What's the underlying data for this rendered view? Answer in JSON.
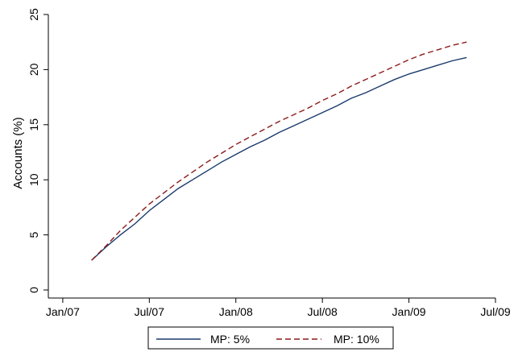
{
  "chart_data": {
    "type": "line",
    "title": "",
    "xlabel": "",
    "ylabel": "Accounts (%)",
    "xlim": [
      "2006-12",
      "2009-07"
    ],
    "ylim": [
      0,
      25
    ],
    "x_ticks": [
      "Jan/07",
      "Jul/07",
      "Jan/08",
      "Jul/08",
      "Jan/09",
      "Jul/09"
    ],
    "y_ticks": [
      0,
      5,
      10,
      15,
      20,
      25
    ],
    "grid": false,
    "legend_position": "bottom",
    "x": [
      "2007-03",
      "2007-04",
      "2007-05",
      "2007-06",
      "2007-07",
      "2007-08",
      "2007-09",
      "2007-10",
      "2007-11",
      "2007-12",
      "2008-01",
      "2008-02",
      "2008-03",
      "2008-04",
      "2008-05",
      "2008-06",
      "2008-07",
      "2008-08",
      "2008-09",
      "2008-10",
      "2008-11",
      "2008-12",
      "2009-01",
      "2009-02",
      "2009-03",
      "2009-04",
      "2009-05"
    ],
    "series": [
      {
        "name": "MP: 5%",
        "color": "#1a3a6b",
        "dash": "solid",
        "values": [
          2.7,
          3.9,
          5.0,
          6.0,
          7.2,
          8.2,
          9.2,
          10.0,
          10.8,
          11.6,
          12.3,
          13.0,
          13.6,
          14.3,
          14.9,
          15.5,
          16.1,
          16.7,
          17.4,
          17.9,
          18.5,
          19.1,
          19.6,
          20.0,
          20.4,
          20.8,
          21.1
        ]
      },
      {
        "name": "MP: 10%",
        "color": "#8b1a1a",
        "dash": "dashed",
        "values": [
          2.7,
          4.0,
          5.4,
          6.6,
          7.8,
          8.8,
          9.8,
          10.7,
          11.6,
          12.4,
          13.2,
          13.9,
          14.6,
          15.3,
          15.9,
          16.5,
          17.2,
          17.8,
          18.5,
          19.1,
          19.7,
          20.3,
          20.9,
          21.4,
          21.8,
          22.2,
          22.5
        ]
      }
    ]
  }
}
